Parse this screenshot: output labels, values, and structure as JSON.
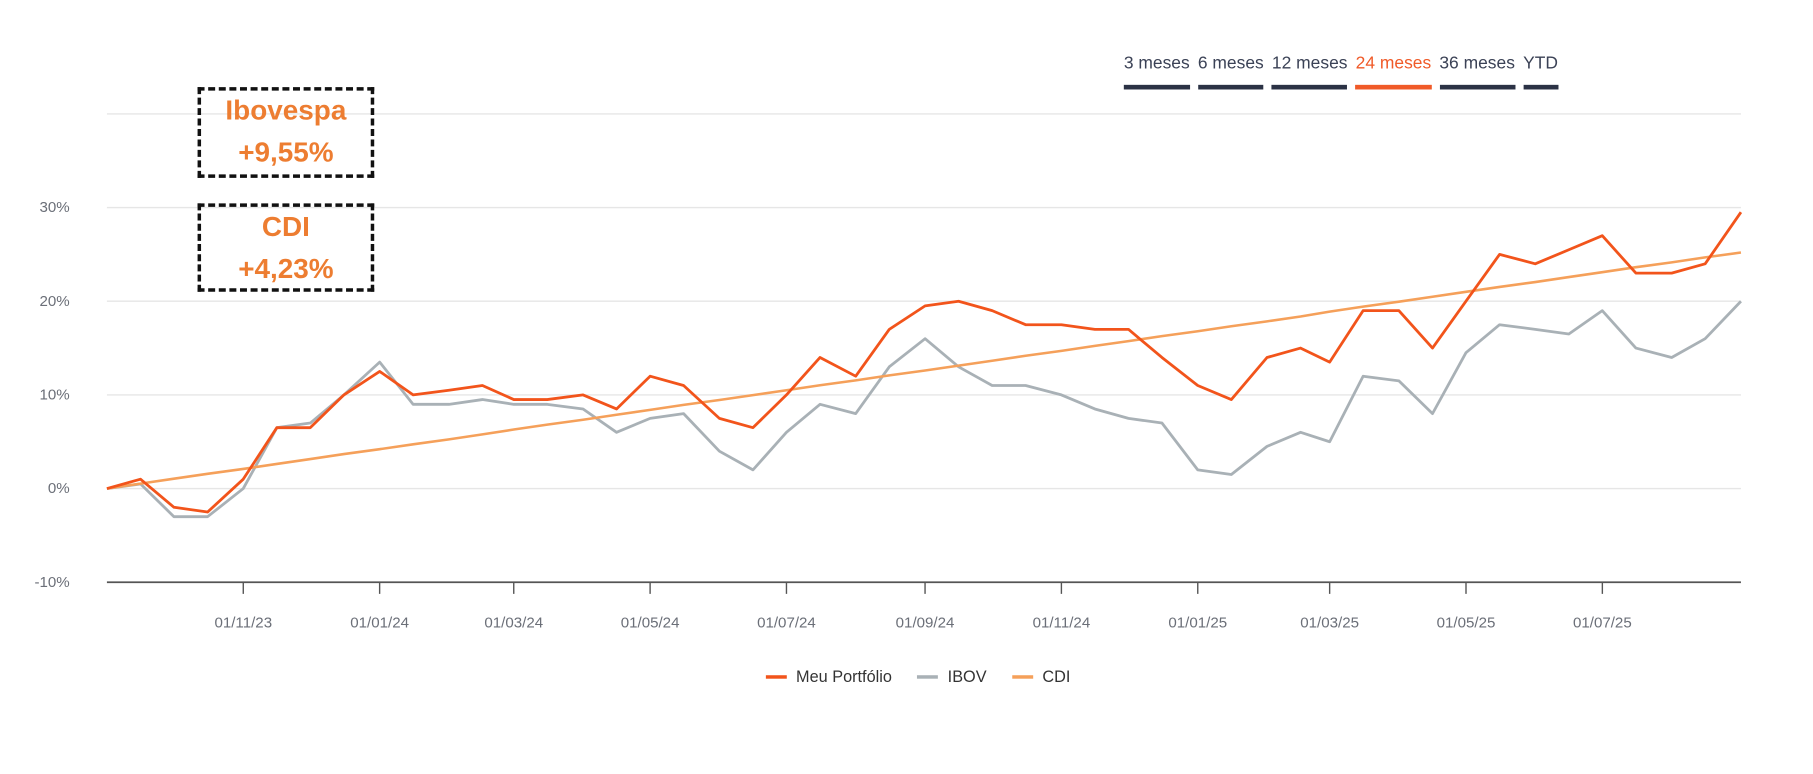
{
  "tabs": [
    {
      "label": "3 meses",
      "active": false
    },
    {
      "label": "6 meses",
      "active": false
    },
    {
      "label": "12 meses",
      "active": false
    },
    {
      "label": "24 meses",
      "active": true
    },
    {
      "label": "36 meses",
      "active": false
    },
    {
      "label": "YTD",
      "active": false
    }
  ],
  "annotations": [
    {
      "title": "Ibovespa",
      "value": "+9,55%"
    },
    {
      "title": "CDI",
      "value": "+4,23%"
    }
  ],
  "colors": {
    "portfolio": "#f2541b",
    "ibov": "#a9b1b6",
    "cdi": "#f5a05a",
    "tab_active": "#f05a28",
    "tab": "#2b3245",
    "annotation": "#ed7d31"
  },
  "chart_data": {
    "type": "line",
    "title": "",
    "xlabel": "",
    "ylabel": "",
    "grid": true,
    "legend_position": "bottom",
    "xlim": [
      "2023-09-01",
      "2025-09-01"
    ],
    "ylim": [
      -10,
      40
    ],
    "y_ticks": [
      {
        "value": 30,
        "label": "30%"
      },
      {
        "value": 20,
        "label": "20%"
      },
      {
        "value": 10,
        "label": "10%"
      },
      {
        "value": 0,
        "label": "0%"
      },
      {
        "value": -10,
        "label": "-10%"
      }
    ],
    "x_ticks": [
      "01/11/23",
      "01/01/24",
      "01/03/24",
      "01/05/24",
      "01/07/24",
      "01/09/24",
      "01/11/24",
      "01/01/25",
      "01/03/25",
      "01/05/25",
      "01/07/25"
    ],
    "x": [
      "2023-09-01",
      "2023-09-16",
      "2023-10-01",
      "2023-10-16",
      "2023-11-01",
      "2023-11-16",
      "2023-12-01",
      "2023-12-16",
      "2024-01-01",
      "2024-01-16",
      "2024-02-01",
      "2024-02-16",
      "2024-03-01",
      "2024-03-16",
      "2024-04-01",
      "2024-04-16",
      "2024-05-01",
      "2024-05-16",
      "2024-06-01",
      "2024-06-16",
      "2024-07-01",
      "2024-07-16",
      "2024-08-01",
      "2024-08-16",
      "2024-09-01",
      "2024-09-16",
      "2024-10-01",
      "2024-10-16",
      "2024-11-01",
      "2024-11-16",
      "2024-12-01",
      "2024-12-16",
      "2025-01-01",
      "2025-01-16",
      "2025-02-01",
      "2025-02-16",
      "2025-03-01",
      "2025-03-16",
      "2025-04-01",
      "2025-04-16",
      "2025-05-01",
      "2025-05-16",
      "2025-06-01",
      "2025-06-16",
      "2025-07-01",
      "2025-07-16",
      "2025-08-01",
      "2025-08-16",
      "2025-09-01"
    ],
    "series": [
      {
        "name": "Meu Portfólio",
        "key": "portfolio",
        "values": [
          0,
          1,
          -2,
          -2.5,
          1,
          6.5,
          6.5,
          10,
          12.5,
          10,
          10.5,
          11,
          9.5,
          9.5,
          10,
          8.5,
          12,
          11,
          7.5,
          6.5,
          10,
          14,
          12,
          17,
          19.5,
          20,
          19,
          17.5,
          17.5,
          17,
          17,
          14,
          11,
          9.5,
          14,
          15,
          13.5,
          19,
          19,
          15,
          20,
          25,
          24,
          25.5,
          27,
          23,
          23,
          24,
          29.5
        ]
      },
      {
        "name": "IBOV",
        "key": "ibov",
        "values": [
          0,
          0.5,
          -3,
          -3,
          0,
          6.5,
          7,
          10,
          13.5,
          9,
          9,
          9.5,
          9,
          9,
          8.5,
          6,
          7.5,
          8,
          4,
          2,
          6,
          9,
          8,
          13,
          16,
          13,
          11,
          11,
          10,
          8.5,
          7.5,
          7,
          2,
          1.5,
          4.5,
          6,
          5,
          12,
          11.5,
          8,
          14.5,
          17.5,
          17,
          16.5,
          19,
          15,
          14,
          16,
          20
        ]
      },
      {
        "name": "CDI",
        "key": "cdi",
        "values": [
          0,
          0.53,
          1.05,
          1.58,
          2.1,
          2.63,
          3.15,
          3.68,
          4.2,
          4.73,
          5.25,
          5.78,
          6.3,
          6.83,
          7.35,
          7.88,
          8.4,
          8.93,
          9.45,
          9.98,
          10.5,
          11.03,
          11.55,
          12.08,
          12.6,
          13.13,
          13.65,
          14.18,
          14.7,
          15.23,
          15.75,
          16.28,
          16.8,
          17.33,
          17.85,
          18.38,
          18.9,
          19.43,
          19.95,
          20.48,
          21,
          21.53,
          22.05,
          22.58,
          23.1,
          23.63,
          24.15,
          24.68,
          25.2
        ]
      }
    ]
  }
}
